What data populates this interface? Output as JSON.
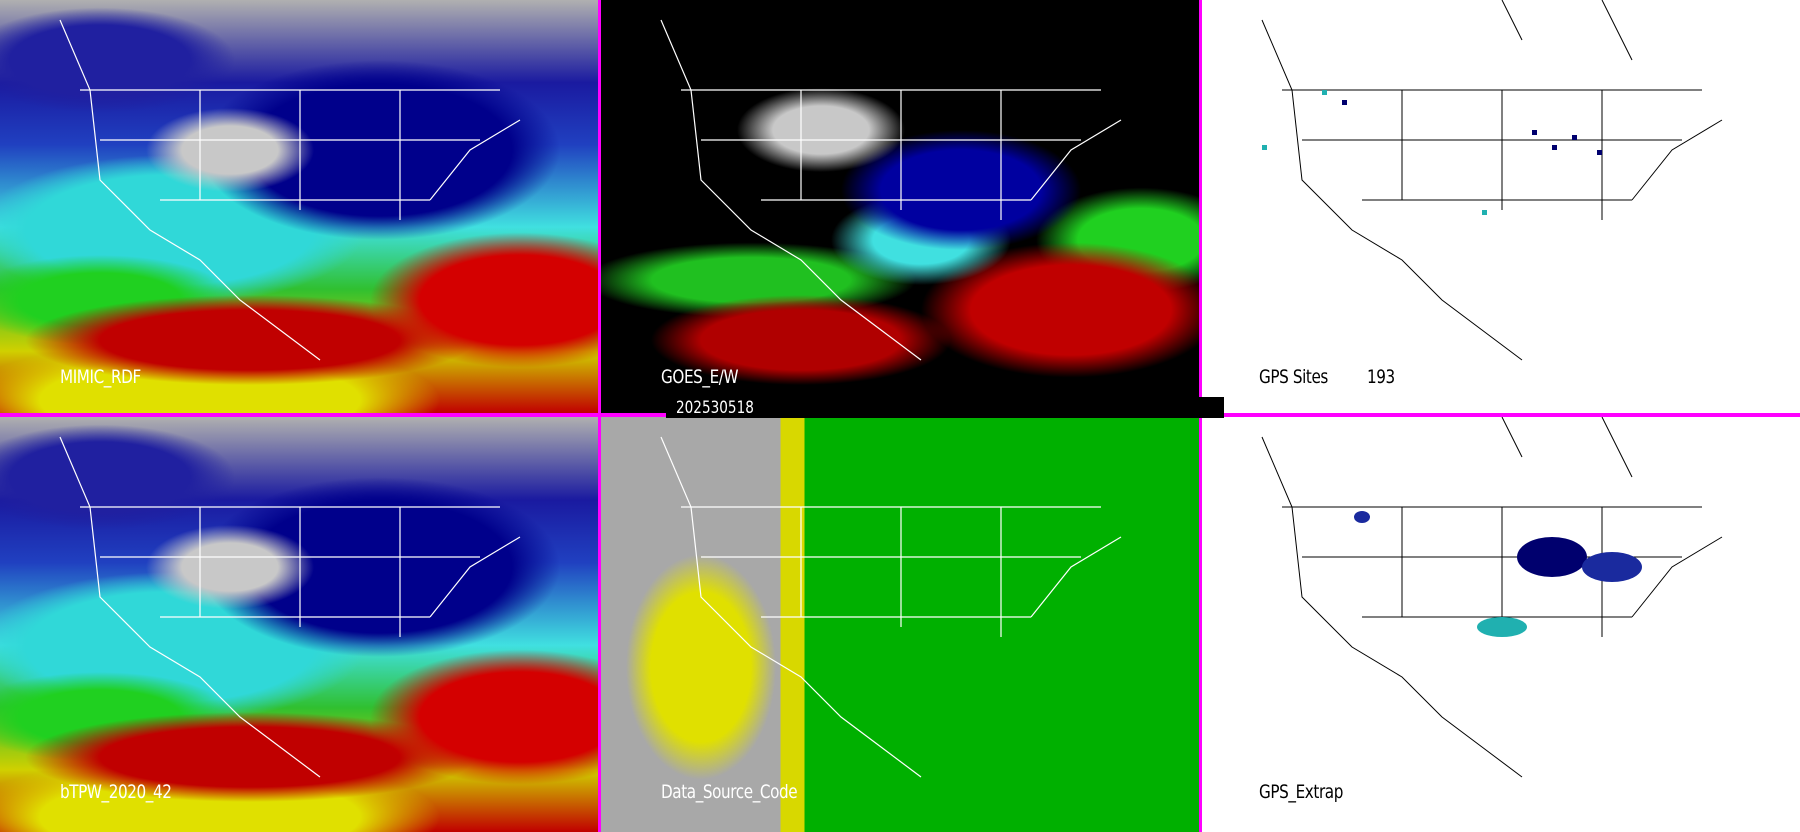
{
  "panels": [
    {
      "label": "MIMIC_RDF"
    },
    {
      "label": "GOES_E/W"
    },
    {
      "label": "GPS Sites",
      "count": "193"
    },
    {
      "label": "bTPW_2020_42"
    },
    {
      "label": "Data_Source_Code"
    },
    {
      "label": "GPS_Extrap"
    }
  ],
  "date": "202530518",
  "colors": {
    "separator": "#ff00ff",
    "gps_site_dark": "#00006e",
    "gps_site_cyan": "#20b0b0"
  }
}
